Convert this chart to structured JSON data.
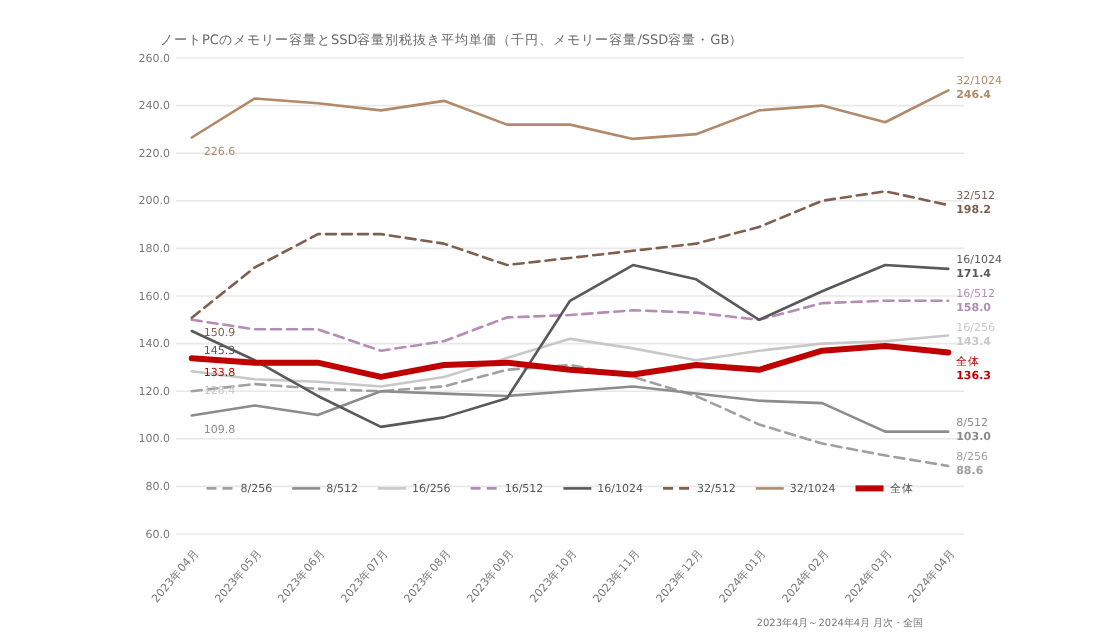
{
  "chart_data": {
    "type": "line",
    "title": "ノートPCのメモリー容量とSSD容量別税抜き平均単価（千円、メモリー容量/SSD容量・GB）",
    "categories": [
      "2023年04月",
      "2023年05月",
      "2023年06月",
      "2023年07月",
      "2023年08月",
      "2023年09月",
      "2023年10月",
      "2023年11月",
      "2023年12月",
      "2024年01月",
      "2024年02月",
      "2024年03月",
      "2024年04月"
    ],
    "series": [
      {
        "name": "8/256",
        "color": "#a0a0a0",
        "line_style": "dashed",
        "values": [
          120,
          123,
          121,
          120,
          122,
          129,
          131,
          126,
          118,
          106,
          98,
          93,
          88.6
        ],
        "value_labels": [
          null,
          null,
          null,
          null,
          null,
          null,
          null,
          null,
          null,
          null,
          null,
          null,
          "88.6"
        ]
      },
      {
        "name": "8/512",
        "color": "#8c8c8c",
        "line_style": "solid",
        "values": [
          109.8,
          114,
          110,
          120,
          119,
          118,
          120,
          122,
          119,
          116,
          115,
          103,
          103.0
        ],
        "value_labels": [
          "109.8",
          null,
          null,
          null,
          null,
          null,
          null,
          null,
          null,
          null,
          null,
          null,
          "103.0"
        ]
      },
      {
        "name": "16/256",
        "color": "#c8c8c8",
        "line_style": "solid",
        "values": [
          128.4,
          125,
          124,
          122,
          126,
          134,
          142,
          138,
          133,
          137,
          140,
          141,
          143.4
        ],
        "value_labels": [
          "128.4",
          null,
          null,
          null,
          null,
          null,
          null,
          null,
          null,
          null,
          null,
          null,
          "143.4"
        ]
      },
      {
        "name": "16/512",
        "color": "#b48cb4",
        "line_style": "dashed",
        "values": [
          150,
          146,
          146,
          137,
          141,
          151,
          152,
          154,
          153,
          150,
          157,
          158,
          158.0
        ],
        "value_labels": [
          null,
          null,
          null,
          null,
          null,
          null,
          null,
          null,
          null,
          null,
          null,
          null,
          "158.0"
        ]
      },
      {
        "name": "16/1024",
        "color": "#595959",
        "line_style": "solid",
        "values": [
          145.3,
          133,
          118,
          105,
          109,
          117,
          158,
          173,
          167,
          150,
          162,
          173,
          171.4
        ],
        "value_labels": [
          "145.3",
          null,
          null,
          null,
          null,
          null,
          null,
          null,
          null,
          null,
          null,
          null,
          "171.4"
        ]
      },
      {
        "name": "32/512",
        "color": "#7f5f4f",
        "line_style": "dashed",
        "values": [
          150.9,
          172,
          186,
          186,
          182,
          173,
          176,
          179,
          182,
          189,
          200,
          204,
          198.2
        ],
        "value_labels": [
          "150.9",
          null,
          null,
          null,
          null,
          null,
          null,
          null,
          null,
          null,
          null,
          null,
          "198.2"
        ]
      },
      {
        "name": "32/1024",
        "color": "#b08a6a",
        "line_style": "solid",
        "values": [
          226.6,
          243,
          241,
          238,
          242,
          232,
          232,
          226,
          228,
          238,
          240,
          233,
          246.4
        ],
        "value_labels": [
          "226.6",
          null,
          null,
          null,
          null,
          null,
          null,
          null,
          null,
          null,
          null,
          null,
          "246.4"
        ]
      },
      {
        "name": "全体",
        "color": "#c00000",
        "line_style": "solid",
        "values": [
          133.8,
          132,
          132,
          126,
          131,
          132,
          129,
          127,
          131,
          129,
          137,
          139,
          136.3
        ],
        "value_labels": [
          "133.8",
          null,
          null,
          null,
          null,
          null,
          null,
          null,
          null,
          null,
          null,
          null,
          "136.3"
        ]
      }
    ],
    "ylim": [
      60,
      260
    ],
    "yticks": [
      {
        "value": 60,
        "label": "60.0"
      },
      {
        "value": 80,
        "label": "80.0"
      },
      {
        "value": 100,
        "label": "100.0"
      },
      {
        "value": 120,
        "label": "120.0"
      },
      {
        "value": 140,
        "label": "140.0"
      },
      {
        "value": 160,
        "label": "160.0"
      },
      {
        "value": 180,
        "label": "180.0"
      },
      {
        "value": 200,
        "label": "200.0"
      },
      {
        "value": 220,
        "label": "220.0"
      },
      {
        "value": 240,
        "label": "240.0"
      },
      {
        "value": 260,
        "label": "260.0"
      }
    ],
    "grid": "y",
    "legend": "bottom",
    "marker": "none",
    "annotations": [
      "2023年4月～2024年4月 月次・全国"
    ]
  }
}
